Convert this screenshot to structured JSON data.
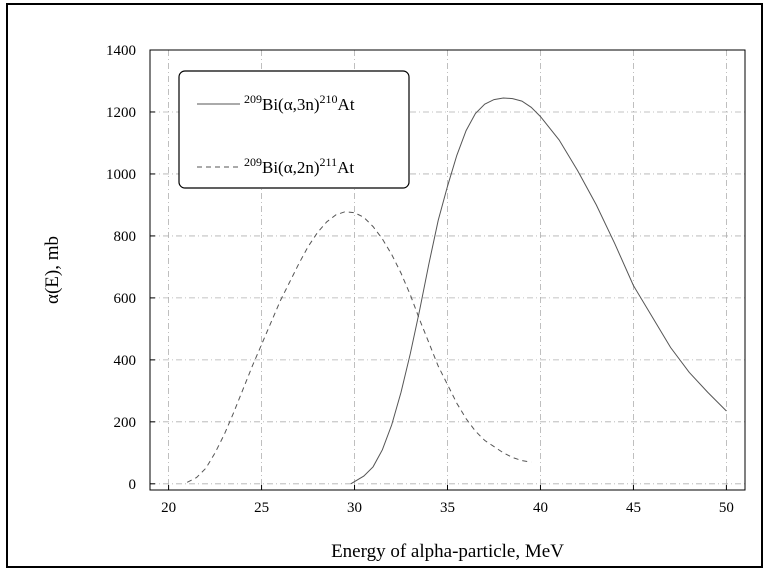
{
  "chart_data": {
    "type": "line",
    "title": "",
    "xlabel": "Energy of alpha-particle, MeV",
    "ylabel": "α(E), mb",
    "xlim": [
      19,
      51
    ],
    "ylim": [
      -20,
      1400
    ],
    "xticks": [
      20,
      25,
      30,
      35,
      40,
      45,
      50
    ],
    "yticks": [
      0,
      200,
      400,
      600,
      800,
      1000,
      1200,
      1400
    ],
    "grid": true,
    "legend_placement": "top-left",
    "series": [
      {
        "name_parts": {
          "pre": "209",
          "mid": "Bi(α,3n)",
          "post": "210",
          "tail": "At"
        },
        "style": "solid",
        "color": "#555555",
        "x": [
          29.8,
          30.5,
          31,
          31.5,
          32,
          32.5,
          33,
          33.5,
          34,
          34.5,
          35,
          35.5,
          36,
          36.5,
          37,
          37.5,
          38,
          38.5,
          39,
          39.5,
          40,
          41,
          42,
          43,
          44,
          45,
          46,
          47,
          48,
          49,
          50
        ],
        "y": [
          0,
          25,
          55,
          110,
          190,
          295,
          420,
          560,
          710,
          850,
          960,
          1060,
          1140,
          1195,
          1225,
          1240,
          1245,
          1243,
          1235,
          1215,
          1185,
          1110,
          1010,
          900,
          775,
          640,
          540,
          440,
          360,
          295,
          235
        ]
      },
      {
        "name_parts": {
          "pre": "209",
          "mid": "Bi(α,2n)",
          "post": "211",
          "tail": "At"
        },
        "style": "dashed",
        "color": "#555555",
        "x": [
          21,
          21.5,
          22,
          22.5,
          23,
          23.5,
          24,
          24.5,
          25,
          25.5,
          26,
          26.5,
          27,
          27.5,
          28,
          28.5,
          29,
          29.5,
          30,
          30.5,
          31,
          31.5,
          32,
          32.5,
          33,
          33.5,
          34,
          34.5,
          35,
          35.5,
          36,
          36.5,
          37,
          37.5,
          38,
          38.5,
          39,
          39.5
        ],
        "y": [
          5,
          20,
          50,
          100,
          160,
          230,
          305,
          380,
          450,
          520,
          590,
          650,
          710,
          765,
          810,
          845,
          868,
          878,
          875,
          860,
          830,
          790,
          740,
          680,
          610,
          530,
          455,
          380,
          320,
          260,
          210,
          170,
          140,
          120,
          100,
          85,
          75,
          70
        ]
      }
    ]
  }
}
